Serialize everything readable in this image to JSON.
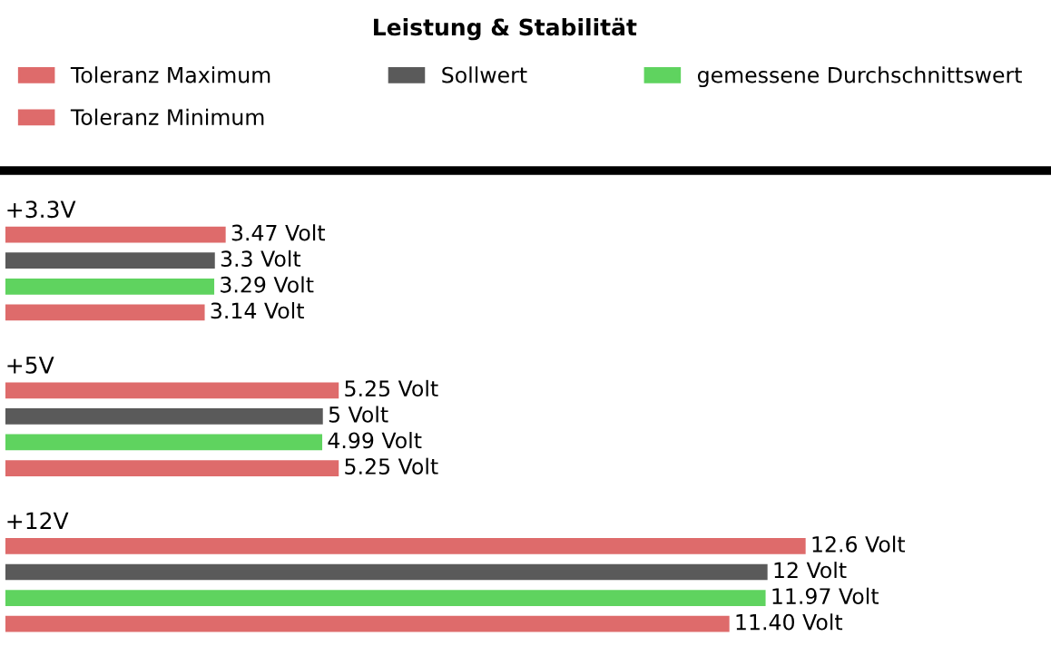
{
  "chart_data": {
    "type": "bar",
    "orientation": "horizontal",
    "title": "Leistung & Stabilität",
    "categories": [
      "+3.3V",
      "+5V",
      "+12V"
    ],
    "series": [
      {
        "name": "Toleranz Maximum",
        "color": "#de6b6b",
        "values": [
          3.47,
          5.25,
          12.6
        ],
        "value_labels": [
          "3.47 Volt",
          "5.25 Volt",
          "12.6 Volt"
        ]
      },
      {
        "name": "Sollwert",
        "color": "#5a5a5a",
        "values": [
          3.3,
          5,
          12
        ],
        "value_labels": [
          "3.3 Volt",
          "5 Volt",
          "12 Volt"
        ]
      },
      {
        "name": "gemessene Durchschnittswert",
        "color": "#5fd35f",
        "values": [
          3.29,
          4.99,
          11.97
        ],
        "value_labels": [
          "3.29 Volt",
          "4.99 Volt",
          "11.97 Volt"
        ]
      },
      {
        "name": "Toleranz Minimum",
        "color": "#de6b6b",
        "values": [
          3.14,
          5.25,
          11.4
        ],
        "value_labels": [
          "3.14 Volt",
          "5.25 Volt",
          "11.40 Volt"
        ]
      }
    ],
    "legend": "top"
  }
}
